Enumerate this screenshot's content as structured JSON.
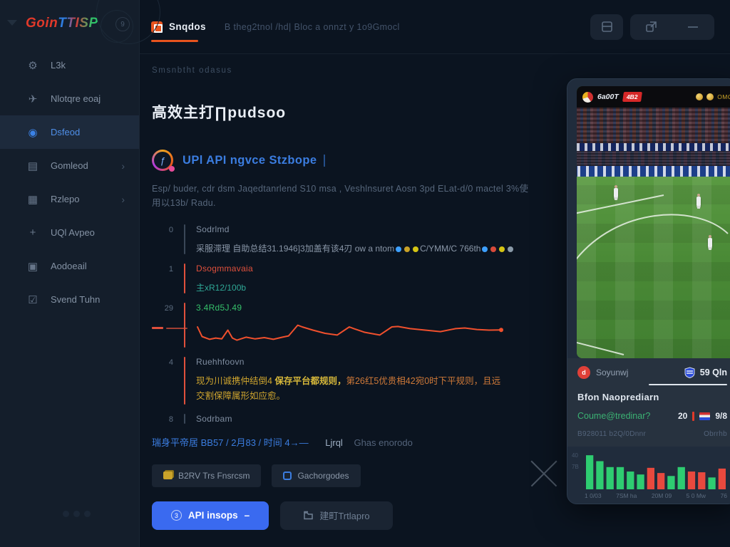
{
  "logo": {
    "brand_primary": "Goin",
    "brand_secondary": "TTISP",
    "badge": "9"
  },
  "sidebar": {
    "items": [
      {
        "icon": "gear",
        "glyph": "⚙",
        "label": "L3k"
      },
      {
        "icon": "plane",
        "glyph": "✈",
        "label": "Nlotqre eoaj"
      },
      {
        "icon": "globe",
        "glyph": "◉",
        "label": "Dsfeod"
      },
      {
        "icon": "grid",
        "glyph": "▤",
        "label": "Gomleod",
        "chevron": "›"
      },
      {
        "icon": "monitor",
        "glyph": "▦",
        "label": "Rzlepo",
        "chevron": "›"
      },
      {
        "icon": "plus",
        "glyph": "+",
        "label": "UQl Avpeo"
      },
      {
        "icon": "archive",
        "glyph": "▣",
        "label": "Aodoeail"
      },
      {
        "icon": "check",
        "glyph": "☑",
        "label": "Svend Tuhn"
      }
    ]
  },
  "header": {
    "tab_label": "Snqdos",
    "subtitle": "B theg2tnol /hd| Bloc a onnzt y 1o9Gmocl"
  },
  "breadcrumb": "Smsnbtht odasus",
  "main": {
    "title": "高效主打∏pudsoo",
    "section_heading": "UPl API ngvce Stzbope",
    "description": "Esp/ buder, cdr dsm Jaqedtanrlend S10 msa , Veshlnsuret Aosn 3pd ELat-d/0 mactel 3%使用以13b/ Radu.",
    "steps": {
      "s0": {
        "num": "0",
        "label": "Sodrlmd",
        "detail": "采服滞理 自助总结31.1946]3加盖有该4刃 ow a ntom",
        "dots1": [
          "#3da0ff",
          "#c9a227",
          "#d4c414"
        ],
        "detail2": "C/YMM/C 766th",
        "dots2": [
          "#3da0ff",
          "#d84a3a",
          "#d4c414",
          "#8a9aa8"
        ]
      },
      "s1": {
        "num": "1",
        "label": "Dsogmmavaia",
        "sub": "主xR12/100b"
      },
      "s2": {
        "num": "29",
        "label": "3.4Rd5J.49"
      },
      "s3": {
        "num": "4",
        "label": "Ruehhfoovn",
        "detail_a": "现为川诚携仲结倒4 ",
        "detail_b": "保存平台都规则，",
        "detail_c": "第26红5优贵相42宛0时下平规则，且远",
        "detail_l2": "交割保障属形如应愈。"
      },
      "s4": {
        "num": "8",
        "label": "Sodrbam"
      }
    },
    "links": {
      "primary": "瑞身平帝居 BB57 / 2月83 / 时间 4→—",
      "secondary": "Ljrql",
      "muted": "Ghas enorodo"
    },
    "chips": [
      {
        "label": "B2RV Trs Fnsrcsm"
      },
      {
        "label": "Gachorgodes"
      }
    ],
    "primary_button": {
      "prefix": "3",
      "label": "API insops",
      "suffix": "–"
    },
    "secondary_button": {
      "label": "建町Trtlapro"
    }
  },
  "panel": {
    "video": {
      "channel": "6a00T",
      "badge": "4B2",
      "right_label": "OMQ"
    },
    "stats": {
      "team1_initial": "d",
      "team1": "Soyunwj",
      "team2": "59 Qln",
      "title": "Bfon Naoprediarn",
      "market": "Coume@tredinar?",
      "score_left": "20",
      "score_right": "9/8",
      "meta_left": "B928011 b2Q/0Dnnr",
      "meta_right": "Obrrhb"
    }
  },
  "chart_data": [
    {
      "type": "line",
      "title": "trend sparkline (step 29)",
      "color": "#f0502d",
      "points": [
        [
          0,
          0.3
        ],
        [
          0.015,
          0.75
        ],
        [
          0.04,
          0.88
        ],
        [
          0.06,
          0.82
        ],
        [
          0.08,
          0.86
        ],
        [
          0.1,
          0.45
        ],
        [
          0.115,
          0.82
        ],
        [
          0.13,
          0.92
        ],
        [
          0.16,
          0.78
        ],
        [
          0.19,
          0.86
        ],
        [
          0.22,
          0.8
        ],
        [
          0.25,
          0.88
        ],
        [
          0.28,
          0.78
        ],
        [
          0.3,
          0.72
        ],
        [
          0.33,
          0.22
        ],
        [
          0.345,
          0.3
        ],
        [
          0.38,
          0.45
        ],
        [
          0.42,
          0.6
        ],
        [
          0.46,
          0.68
        ],
        [
          0.5,
          0.3
        ],
        [
          0.515,
          0.38
        ],
        [
          0.55,
          0.55
        ],
        [
          0.6,
          0.68
        ],
        [
          0.64,
          0.3
        ],
        [
          0.66,
          0.28
        ],
        [
          0.7,
          0.38
        ],
        [
          0.75,
          0.45
        ],
        [
          0.8,
          0.52
        ],
        [
          0.85,
          0.38
        ],
        [
          0.88,
          0.35
        ],
        [
          0.92,
          0.42
        ],
        [
          0.96,
          0.45
        ],
        [
          1,
          0.44
        ]
      ]
    },
    {
      "type": "bar",
      "title": "match volume bars",
      "categories": [
        "1 0/03",
        "7SM ha",
        "20M 09",
        "5 0 Mw",
        "76"
      ],
      "values": [
        46,
        38,
        30,
        30,
        24,
        20,
        29,
        22,
        18,
        30,
        24,
        23,
        16,
        28
      ],
      "colors": [
        "g",
        "g",
        "g",
        "g",
        "g",
        "g",
        "r",
        "r",
        "g",
        "g",
        "r",
        "r",
        "g",
        "r"
      ],
      "ymax": 50,
      "ylabels": [
        "40",
        "7B"
      ],
      "positive_color": "#2ecc71",
      "negative_color": "#e8493e"
    }
  ]
}
